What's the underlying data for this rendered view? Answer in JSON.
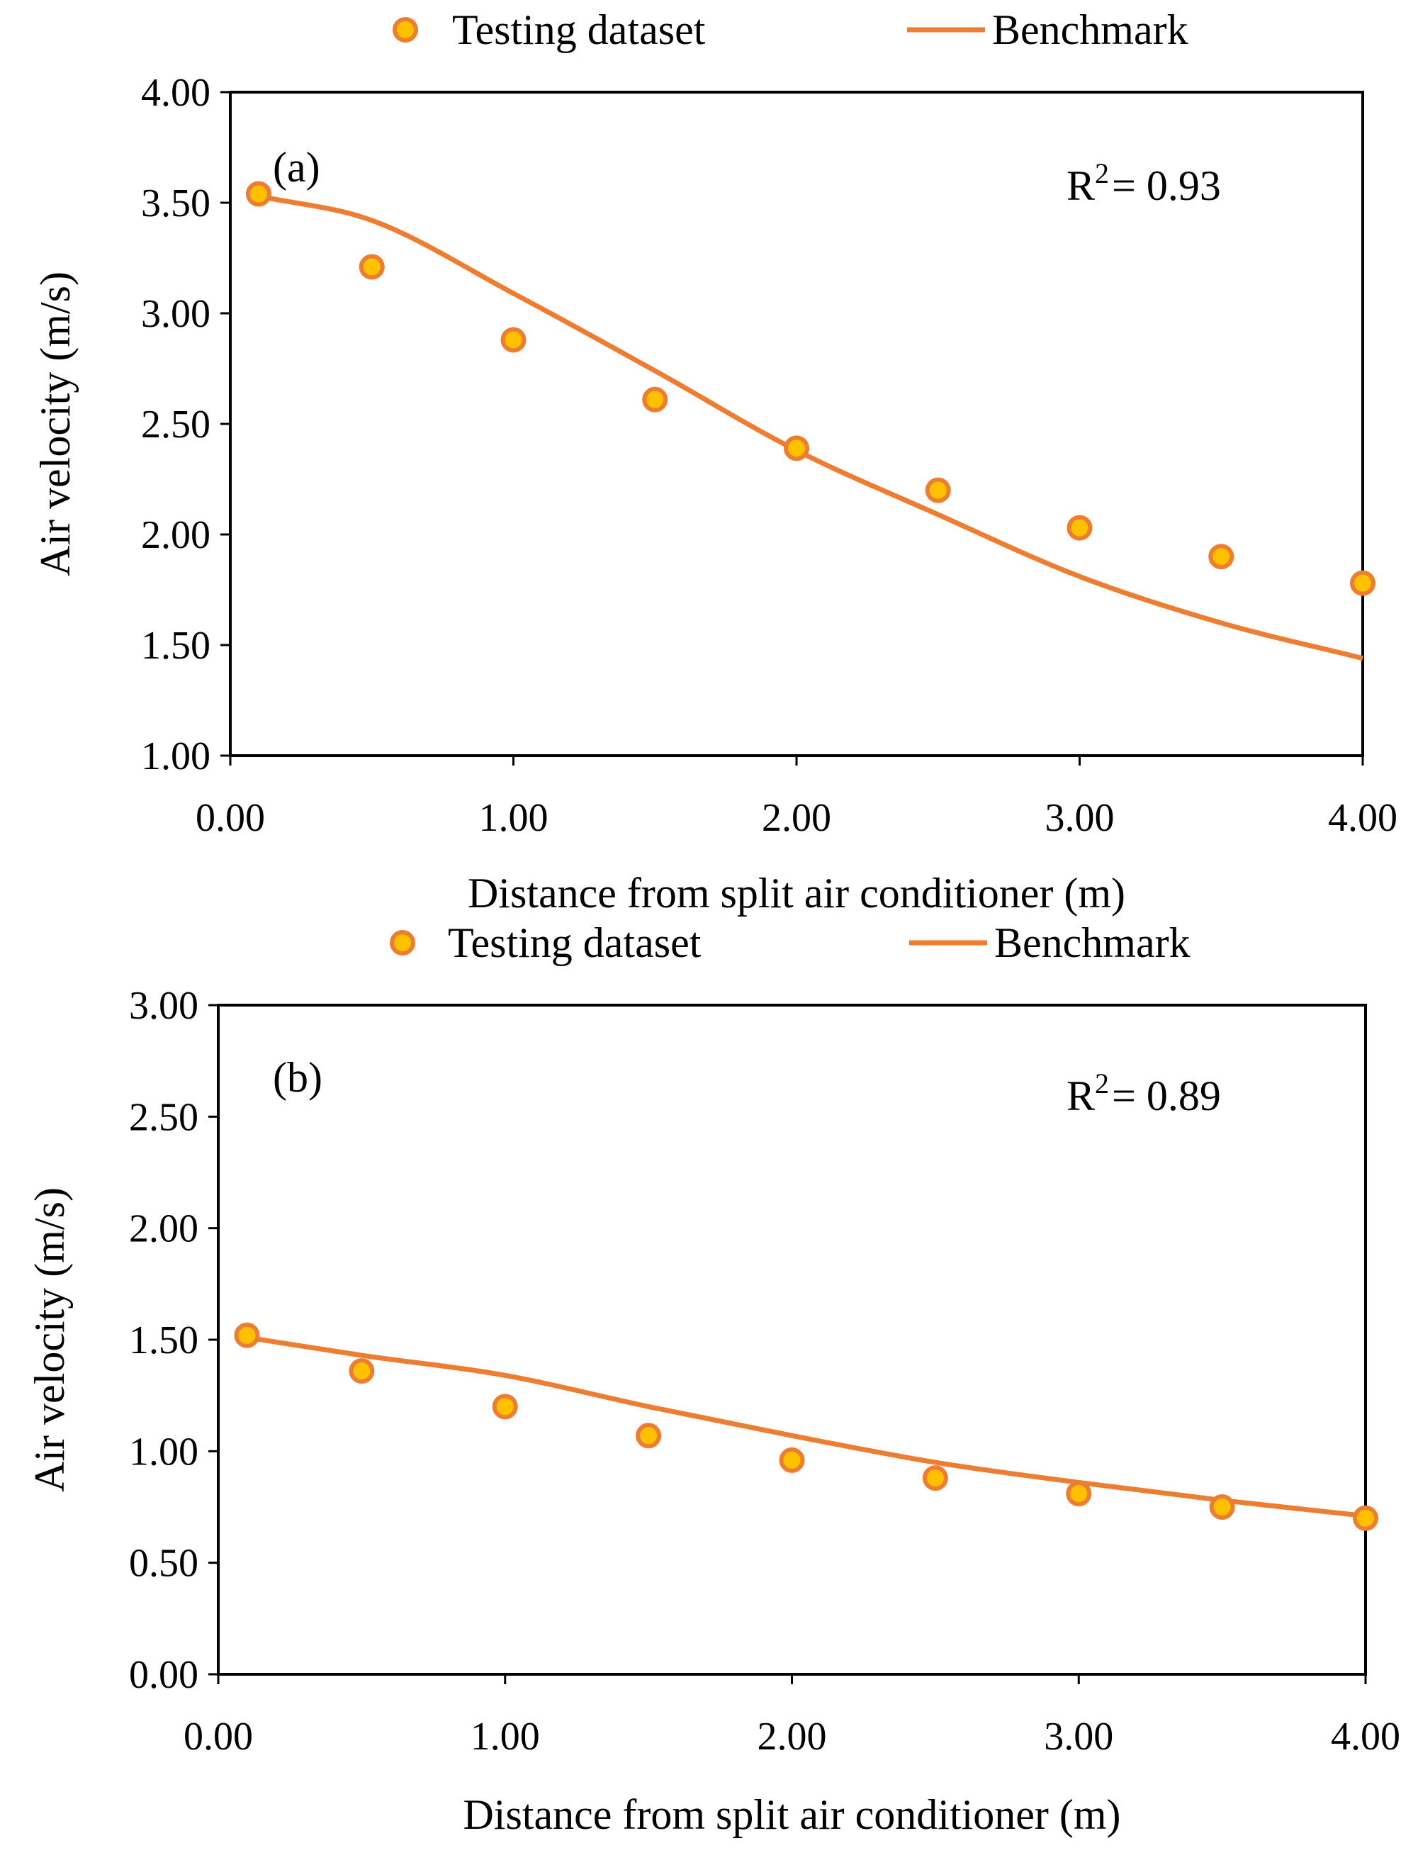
{
  "colors": {
    "line": "#ED7D31",
    "marker_fill": "#FFC000",
    "marker_edge": "#ED7D31",
    "axis": "#000000"
  },
  "chart_data": [
    {
      "type": "scatter",
      "panel_label": "(a)",
      "r2_label": "R",
      "r2_sup": "2",
      "r2_value": "= 0.93",
      "legend": {
        "scatter": "Testing dataset",
        "line": "Benchmark"
      },
      "xlabel": "Distance from split air conditioner (m)",
      "ylabel": "Air velocity (m/s)",
      "xlim": [
        0,
        4
      ],
      "ylim": [
        1,
        4
      ],
      "xticks": [
        0,
        1,
        2,
        3,
        4
      ],
      "yticks": [
        1,
        1.5,
        2,
        2.5,
        3,
        3.5,
        4
      ],
      "xtick_labels": [
        "0.00",
        "1.00",
        "2.00",
        "3.00",
        "4.00"
      ],
      "ytick_labels": [
        "1.00",
        "1.50",
        "2.00",
        "2.50",
        "3.00",
        "3.50",
        "4.00"
      ],
      "series": [
        {
          "name": "Testing dataset",
          "kind": "scatter",
          "x": [
            0.1,
            0.5,
            1.0,
            1.5,
            2.0,
            2.5,
            3.0,
            3.5,
            4.0
          ],
          "y": [
            3.54,
            3.21,
            2.88,
            2.61,
            2.39,
            2.2,
            2.03,
            1.9,
            1.78
          ]
        },
        {
          "name": "Benchmark",
          "kind": "line",
          "x": [
            0.1,
            0.5,
            1.0,
            1.5,
            2.0,
            2.5,
            3.0,
            3.5,
            4.0
          ],
          "y": [
            3.53,
            3.42,
            3.09,
            2.74,
            2.38,
            2.09,
            1.81,
            1.6,
            1.44
          ]
        }
      ]
    },
    {
      "type": "scatter",
      "panel_label": "(b)",
      "r2_label": "R",
      "r2_sup": "2",
      "r2_value": "= 0.89",
      "legend": {
        "scatter": "Testing dataset",
        "line": "Benchmark"
      },
      "xlabel": "Distance from split air conditioner (m)",
      "ylabel": "Air velocity (m/s)",
      "xlim": [
        0,
        4
      ],
      "ylim": [
        0,
        3
      ],
      "xticks": [
        0,
        1,
        2,
        3,
        4
      ],
      "yticks": [
        0,
        0.5,
        1,
        1.5,
        2,
        2.5,
        3
      ],
      "xtick_labels": [
        "0.00",
        "1.00",
        "2.00",
        "3.00",
        "4.00"
      ],
      "ytick_labels": [
        "0.00",
        "0.50",
        "1.00",
        "1.50",
        "2.00",
        "2.50",
        "3.00"
      ],
      "series": [
        {
          "name": "Testing dataset",
          "kind": "scatter",
          "x": [
            0.1,
            0.5,
            1.0,
            1.5,
            2.0,
            2.5,
            3.0,
            3.5,
            4.0
          ],
          "y": [
            1.52,
            1.36,
            1.2,
            1.07,
            0.96,
            0.88,
            0.81,
            0.75,
            0.7
          ]
        },
        {
          "name": "Benchmark",
          "kind": "line",
          "x": [
            0.1,
            0.5,
            1.0,
            1.5,
            2.0,
            2.5,
            3.0,
            3.5,
            4.0
          ],
          "y": [
            1.51,
            1.43,
            1.34,
            1.2,
            1.07,
            0.95,
            0.86,
            0.78,
            0.71
          ]
        }
      ]
    }
  ]
}
